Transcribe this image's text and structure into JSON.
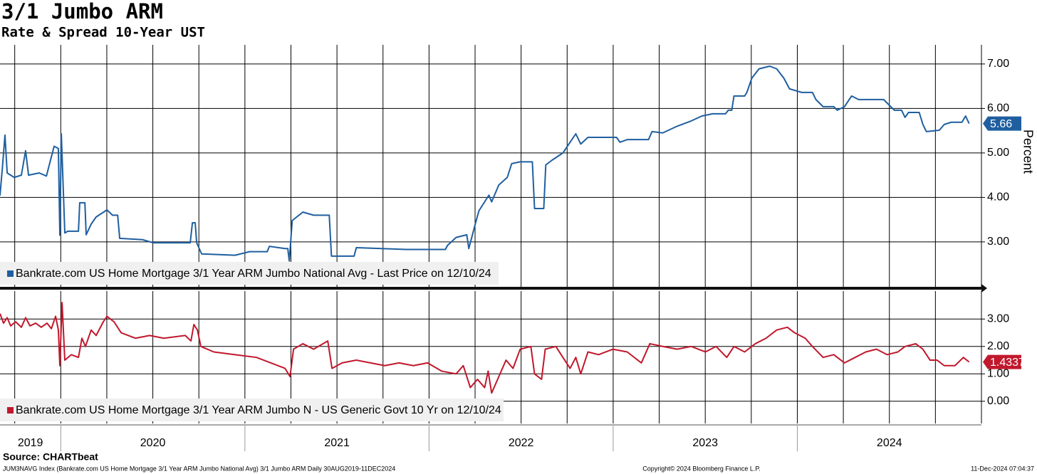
{
  "header": {
    "title": "3/1 Jumbo ARM",
    "subtitle": "Rate & Spread 10-Year UST"
  },
  "footer": {
    "source": "Source: CHARTbeat",
    "note": "JUM3NAVG Index (Bankrate.com US Home Mortgage 3/1 Year ARM Jumbo National Avg) 3/1 Jumbo ARM  Daily 30AUG2019-11DEC2024",
    "copyright": "Copyright© 2024 Bloomberg Finance L.P.",
    "timestamp": "11-Dec-2024 07:04:37"
  },
  "chart_data": [
    {
      "type": "line",
      "ylabel": "Percent",
      "xlim": [
        2019.67,
        2025.0
      ],
      "xgrid": [
        2019.75,
        2020.0,
        2020.25,
        2020.5,
        2020.75,
        2021.0,
        2021.25,
        2021.5,
        2021.75,
        2022.0,
        2022.25,
        2022.5,
        2022.75,
        2023.0,
        2023.25,
        2023.5,
        2023.75,
        2024.0,
        2024.25,
        2024.5,
        2024.75
      ],
      "ylim": [
        1.99,
        7.43
      ],
      "yticks": [
        {
          "value": 3,
          "label": "3.00"
        },
        {
          "value": 4,
          "label": "4.00"
        },
        {
          "value": 5,
          "label": "5.00"
        },
        {
          "value": 6,
          "label": "6.00"
        },
        {
          "value": 7,
          "label": "7.00"
        }
      ],
      "grid": true,
      "legend": "lower left",
      "x": [
        2019.67,
        2019.682,
        2019.697,
        2019.709,
        2019.747,
        2019.786,
        2019.809,
        2019.825,
        2019.883,
        2019.922,
        2019.964,
        2019.987,
        2019.995,
        2020.003,
        2020.022,
        2020.038,
        2020.096,
        2020.103,
        2020.131,
        2020.138,
        2020.165,
        2020.192,
        2020.251,
        2020.281,
        2020.309,
        2020.32,
        2020.444,
        2020.502,
        2020.703,
        2020.715,
        2020.73,
        2020.738,
        2020.765,
        2020.947,
        2021.025,
        2021.121,
        2021.133,
        2021.218,
        2021.233,
        2021.241,
        2021.257,
        2021.315,
        2021.373,
        2021.458,
        2021.47,
        2021.593,
        2021.605,
        2021.876,
        2022.089,
        2022.1,
        2022.147,
        2022.205,
        2022.216,
        2022.251,
        2022.271,
        2022.325,
        2022.34,
        2022.379,
        2022.425,
        2022.449,
        2022.495,
        2022.561,
        2022.573,
        2022.623,
        2022.634,
        2022.669,
        2022.727,
        2022.766,
        2022.797,
        2022.824,
        2022.863,
        2023.018,
        2023.037,
        2023.076,
        2023.192,
        2023.211,
        2023.269,
        2023.347,
        2023.424,
        2023.482,
        2023.54,
        2023.61,
        2023.625,
        2023.644,
        2023.656,
        2023.714,
        2023.726,
        2023.753,
        2023.792,
        2023.85,
        2023.888,
        2023.927,
        2023.958,
        2024.024,
        2024.082,
        2024.101,
        2024.14,
        2024.198,
        2024.217,
        2024.256,
        2024.295,
        2024.333,
        2024.469,
        2024.488,
        2024.527,
        2024.566,
        2024.585,
        2024.604,
        2024.662,
        2024.682,
        2024.701,
        2024.771,
        2024.798,
        2024.836,
        2024.894,
        2024.914,
        2024.933
      ],
      "series": [
        {
          "name": "Bankrate.com US Home Mortgage 3/1 Year ARM Jumbo National Avg - Last Price on 12/10/24",
          "color": "#1f5fa0",
          "values": [
            4.04,
            4.62,
            5.4,
            4.55,
            4.45,
            4.5,
            5.05,
            4.5,
            4.55,
            4.48,
            5.15,
            5.1,
            3.15,
            5.43,
            3.2,
            3.24,
            3.24,
            3.88,
            3.88,
            3.16,
            3.4,
            3.56,
            3.72,
            3.6,
            3.6,
            3.08,
            3.05,
            2.98,
            2.98,
            3.43,
            3.43,
            2.98,
            2.73,
            2.7,
            2.78,
            2.78,
            2.9,
            2.85,
            2.85,
            2.57,
            3.48,
            3.67,
            3.6,
            3.6,
            2.68,
            2.68,
            2.87,
            2.83,
            2.83,
            2.92,
            3.1,
            3.16,
            2.85,
            3.4,
            3.7,
            4.05,
            3.9,
            4.28,
            4.45,
            4.76,
            4.8,
            4.8,
            3.75,
            3.75,
            4.73,
            4.84,
            5.0,
            5.24,
            5.43,
            5.2,
            5.35,
            5.35,
            5.24,
            5.3,
            5.3,
            5.48,
            5.45,
            5.6,
            5.72,
            5.83,
            5.88,
            5.88,
            5.96,
            5.96,
            6.28,
            6.28,
            6.36,
            6.68,
            6.89,
            6.95,
            6.89,
            6.68,
            6.44,
            6.36,
            6.36,
            6.2,
            6.04,
            6.04,
            5.96,
            6.04,
            6.28,
            6.2,
            6.2,
            6.12,
            5.96,
            5.96,
            5.8,
            5.91,
            5.91,
            5.64,
            5.48,
            5.51,
            5.64,
            5.69,
            5.69,
            5.83,
            5.66
          ]
        }
      ]
    },
    {
      "type": "line",
      "xlim": [
        2019.67,
        2025.0
      ],
      "xgrid": [
        2019.75,
        2020.0,
        2020.25,
        2020.5,
        2020.75,
        2021.0,
        2021.25,
        2021.5,
        2021.75,
        2022.0,
        2022.25,
        2022.5,
        2022.75,
        2023.0,
        2023.25,
        2023.5,
        2023.75,
        2024.0,
        2024.25,
        2024.5,
        2024.75
      ],
      "xticks": [
        2019,
        2020,
        2021,
        2022,
        2023,
        2024
      ],
      "ylim": [
        -0.81,
        4.02
      ],
      "yticks": [
        {
          "value": 0,
          "label": "0.00"
        },
        {
          "value": 1,
          "label": "1.00"
        },
        {
          "value": 2,
          "label": "2.00"
        },
        {
          "value": 3,
          "label": "3.00"
        }
      ],
      "grid": true,
      "legend": "lower left",
      "x": [
        2019.67,
        2019.689,
        2019.709,
        2019.728,
        2019.755,
        2019.786,
        2019.809,
        2019.833,
        2019.864,
        2019.894,
        2019.925,
        2019.949,
        2019.972,
        2019.987,
        2019.995,
        2020.007,
        2020.022,
        2020.057,
        2020.096,
        2020.115,
        2020.134,
        2020.165,
        2020.192,
        2020.231,
        2020.251,
        2020.289,
        2020.328,
        2020.405,
        2020.483,
        2020.56,
        2020.676,
        2020.707,
        2020.723,
        2020.742,
        2020.761,
        2020.831,
        2020.947,
        2021.063,
        2021.141,
        2021.218,
        2021.245,
        2021.264,
        2021.315,
        2021.373,
        2021.45,
        2021.473,
        2021.528,
        2021.605,
        2021.682,
        2021.76,
        2021.837,
        2021.915,
        2021.992,
        2022.069,
        2022.147,
        2022.186,
        2022.224,
        2022.263,
        2022.302,
        2022.321,
        2022.34,
        2022.379,
        2022.418,
        2022.456,
        2022.495,
        2022.553,
        2022.573,
        2022.611,
        2022.631,
        2022.689,
        2022.727,
        2022.766,
        2022.797,
        2022.824,
        2022.863,
        2022.921,
        2022.998,
        2023.076,
        2023.153,
        2023.199,
        2023.269,
        2023.347,
        2023.424,
        2023.501,
        2023.559,
        2023.617,
        2023.656,
        2023.714,
        2023.772,
        2023.83,
        2023.888,
        2023.946,
        2023.985,
        2024.043,
        2024.082,
        2024.14,
        2024.198,
        2024.256,
        2024.314,
        2024.372,
        2024.43,
        2024.488,
        2024.546,
        2024.585,
        2024.643,
        2024.682,
        2024.721,
        2024.759,
        2024.798,
        2024.856,
        2024.902,
        2024.933
      ],
      "series": [
        {
          "name": "Bankrate.com US Home Mortgage 3/1 Year ARM Jumbo N - US Generic Govt 10 Yr on 12/10/24",
          "color": "#c0182c",
          "values": [
            3.2,
            2.85,
            3.05,
            2.75,
            2.9,
            2.7,
            3.05,
            2.75,
            2.85,
            2.7,
            2.85,
            2.65,
            3.1,
            2.6,
            1.3,
            3.6,
            1.5,
            1.7,
            1.6,
            2.3,
            2.0,
            2.6,
            2.4,
            2.9,
            3.1,
            2.9,
            2.5,
            2.3,
            2.4,
            2.3,
            2.4,
            2.2,
            2.8,
            2.6,
            2.0,
            1.8,
            1.7,
            1.6,
            1.4,
            1.2,
            0.9,
            1.9,
            2.1,
            1.9,
            2.2,
            1.2,
            1.4,
            1.5,
            1.4,
            1.3,
            1.4,
            1.3,
            1.4,
            1.1,
            1.0,
            1.3,
            0.5,
            0.8,
            0.5,
            1.1,
            0.3,
            0.9,
            1.5,
            1.2,
            1.9,
            2.0,
            1.0,
            0.8,
            1.9,
            2.0,
            1.6,
            1.2,
            1.6,
            1.0,
            1.8,
            1.7,
            1.9,
            1.8,
            1.4,
            2.1,
            2.0,
            1.9,
            2.0,
            1.8,
            2.0,
            1.6,
            2.0,
            1.8,
            2.1,
            2.3,
            2.6,
            2.7,
            2.5,
            2.3,
            2.0,
            1.6,
            1.7,
            1.4,
            1.6,
            1.8,
            1.9,
            1.7,
            1.8,
            2.0,
            2.1,
            1.9,
            1.5,
            1.5,
            1.3,
            1.3,
            1.6,
            1.4337
          ]
        }
      ]
    }
  ]
}
